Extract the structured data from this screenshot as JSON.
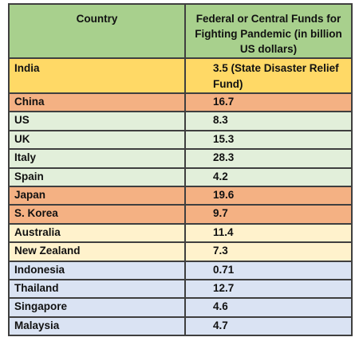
{
  "chart_data": {
    "type": "table",
    "columns": [
      "Country",
      "Federal or Central Funds for Fighting Pandemic (in billion US dollars)"
    ],
    "header_color": "#a8d08d",
    "rows": [
      {
        "country": "India",
        "value": "3.5  (State Disaster Relief Fund)",
        "color": "#ffd966"
      },
      {
        "country": "China",
        "value": "16.7",
        "color": "#f4b183"
      },
      {
        "country": "US",
        "value": "8.3",
        "color": "#e2efda"
      },
      {
        "country": "UK",
        "value": "15.3",
        "color": "#e2efda"
      },
      {
        "country": "Italy",
        "value": "28.3",
        "color": "#e2efda"
      },
      {
        "country": "Spain",
        "value": "4.2",
        "color": "#e2efda"
      },
      {
        "country": "Japan",
        "value": "19.6",
        "color": "#f4b183"
      },
      {
        "country": "S. Korea",
        "value": "9.7",
        "color": "#f4b183"
      },
      {
        "country": "Australia",
        "value": "11.4",
        "color": "#fff2cc"
      },
      {
        "country": "New Zealand",
        "value": "7.3",
        "color": "#fff2cc"
      },
      {
        "country": "Indonesia",
        "value": "0.71",
        "color": "#dae3f3"
      },
      {
        "country": "Thailand",
        "value": "12.7",
        "color": "#dae3f3"
      },
      {
        "country": "Singapore",
        "value": "4.6",
        "color": "#dae3f3"
      },
      {
        "country": "Malaysia",
        "value": "4.7",
        "color": "#dae3f3"
      }
    ]
  }
}
